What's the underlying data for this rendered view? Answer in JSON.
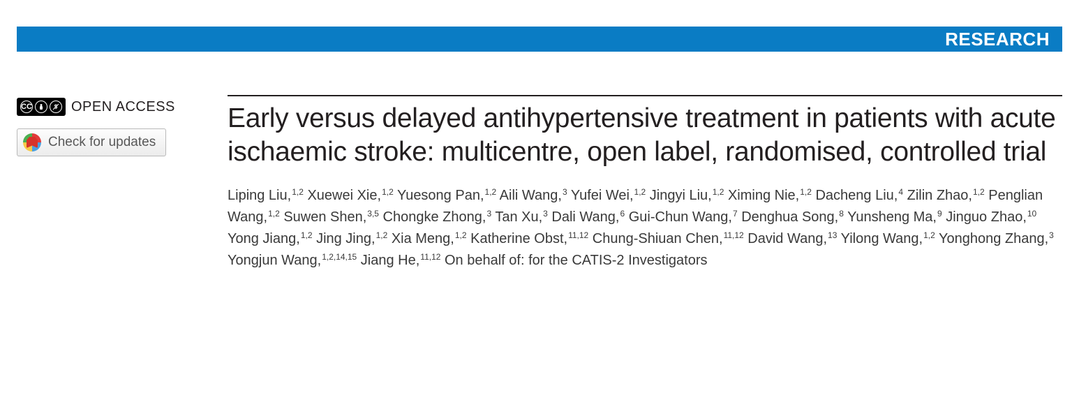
{
  "banner": {
    "label": "RESEARCH",
    "background_color": "#0a7cc4",
    "text_color": "#ffffff"
  },
  "sidebar": {
    "open_access_label": "OPEN ACCESS",
    "cc_text": "CC",
    "by_text": "BY",
    "nc_text": "NC",
    "updates_label": "Check for updates"
  },
  "article": {
    "title": "Early versus delayed antihypertensive treatment in patients with acute ischaemic stroke: multicentre, open label, randomised, controlled trial",
    "authors": [
      {
        "name": "Liping Liu",
        "affil": "1,2"
      },
      {
        "name": "Xuewei Xie",
        "affil": "1,2"
      },
      {
        "name": "Yuesong Pan",
        "affil": "1,2"
      },
      {
        "name": "Aili Wang",
        "affil": "3"
      },
      {
        "name": "Yufei Wei",
        "affil": "1,2"
      },
      {
        "name": "Jingyi Liu",
        "affil": "1,2"
      },
      {
        "name": "Ximing Nie",
        "affil": "1,2"
      },
      {
        "name": "Dacheng Liu",
        "affil": "4"
      },
      {
        "name": "Zilin Zhao",
        "affil": "1,2"
      },
      {
        "name": "Penglian Wang",
        "affil": "1,2"
      },
      {
        "name": "Suwen Shen",
        "affil": "3,5"
      },
      {
        "name": "Chongke Zhong",
        "affil": "3"
      },
      {
        "name": "Tan Xu",
        "affil": "3"
      },
      {
        "name": "Dali Wang",
        "affil": "6"
      },
      {
        "name": "Gui-Chun Wang",
        "affil": "7"
      },
      {
        "name": "Denghua Song",
        "affil": "8"
      },
      {
        "name": "Yunsheng Ma",
        "affil": "9"
      },
      {
        "name": "Jinguo Zhao",
        "affil": "10"
      },
      {
        "name": "Yong Jiang",
        "affil": "1,2"
      },
      {
        "name": "Jing Jing",
        "affil": "1,2"
      },
      {
        "name": "Xia Meng",
        "affil": "1,2"
      },
      {
        "name": "Katherine Obst",
        "affil": "11,12"
      },
      {
        "name": "Chung-Shiuan Chen",
        "affil": "11,12"
      },
      {
        "name": "David Wang",
        "affil": "13"
      },
      {
        "name": "Yilong Wang",
        "affil": "1,2"
      },
      {
        "name": "Yonghong Zhang",
        "affil": "3"
      },
      {
        "name": "Yongjun Wang",
        "affil": "1,2,14,15"
      },
      {
        "name": "Jiang He",
        "affil": "11,12"
      }
    ],
    "on_behalf": "On behalf of: for the CATIS-2 Investigators"
  },
  "style": {
    "title_color": "#231f20",
    "author_color": "#3a3a3a",
    "rule_color": "#231f20"
  }
}
